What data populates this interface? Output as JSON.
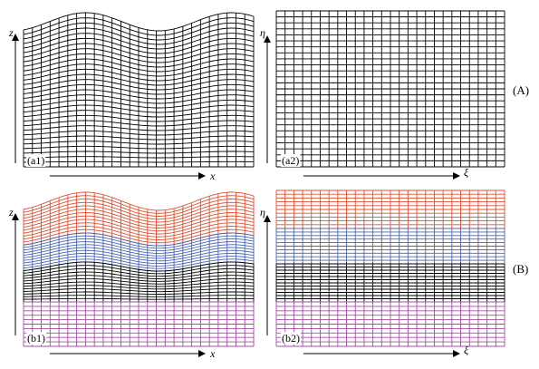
{
  "panels": {
    "a1": {
      "label": "(a1)",
      "h_axis": "x",
      "v_axis": "z"
    },
    "a2": {
      "label": "(a2)",
      "h_axis": "ξ",
      "v_axis": "η"
    },
    "b1": {
      "label": "(b1)",
      "h_axis": "x",
      "v_axis": "z"
    },
    "b2": {
      "label": "(b2)",
      "h_axis": "ξ",
      "v_axis": "η"
    }
  },
  "rows": {
    "a": "(A)",
    "b": "(B)"
  },
  "colors": {
    "grid_single": "#000000",
    "layer_top": "#e05030",
    "layer_upper_mid": "#4a64b4",
    "layer_lower_mid": "#000000",
    "layer_bottom": "#a64ca6"
  }
}
